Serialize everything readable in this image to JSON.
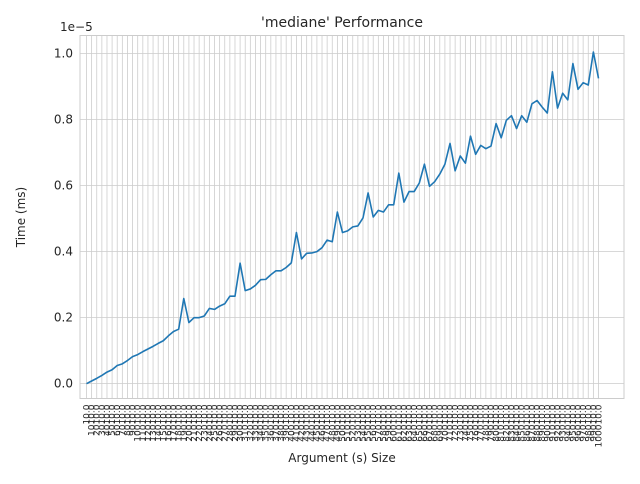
{
  "chart_data": {
    "type": "line",
    "title": "'mediane' Performance",
    "xlabel": "Argument (s) Size",
    "ylabel": "Time (ms)",
    "y_offset_label": "1e−5",
    "y_scale_factor": 1e-05,
    "ylim": [
      -0.045,
      1.055
    ],
    "yticks": [
      0.0,
      0.2,
      0.4,
      0.6,
      0.8,
      1.0
    ],
    "ytick_labels": [
      "0.0",
      "0.2",
      "0.4",
      "0.6",
      "0.8",
      "1.0"
    ],
    "grid": true,
    "x": [
      "10.0",
      "1010.0",
      "2010.0",
      "3010.0",
      "4010.0",
      "5010.0",
      "6010.0",
      "7010.0",
      "8010.0",
      "9010.0",
      "10010.0",
      "11010.0",
      "12010.0",
      "13010.0",
      "14010.0",
      "15010.0",
      "16010.0",
      "17010.0",
      "18010.0",
      "19010.0",
      "20010.0",
      "21010.0",
      "22010.0",
      "23010.0",
      "24010.0",
      "25010.0",
      "26010.0",
      "27010.0",
      "28010.0",
      "29010.0",
      "30010.0",
      "31010.0",
      "32010.0",
      "33010.0",
      "34010.0",
      "35010.0",
      "36010.0",
      "37010.0",
      "38010.0",
      "39010.0",
      "40010.0",
      "41010.0",
      "42010.0",
      "43010.0",
      "44010.0",
      "45010.0",
      "46010.0",
      "47010.0",
      "48010.0",
      "49010.0",
      "50010.0",
      "51010.0",
      "52010.0",
      "53010.0",
      "54010.0",
      "55010.0",
      "56010.0",
      "57010.0",
      "58010.0",
      "59010.0",
      "60010.0",
      "61010.0",
      "62010.0",
      "63010.0",
      "64010.0",
      "65010.0",
      "66010.0",
      "67010.0",
      "68010.0",
      "69010.0",
      "70010.0",
      "71010.0",
      "72010.0",
      "73010.0",
      "74010.0",
      "75010.0",
      "76010.0",
      "77010.0",
      "78010.0",
      "79010.0",
      "80010.0",
      "81010.0",
      "82010.0",
      "83010.0",
      "84010.0",
      "85010.0",
      "86010.0",
      "87010.0",
      "88010.0",
      "89010.0",
      "90010.0",
      "91010.0",
      "92010.0",
      "93010.0",
      "94010.0",
      "95010.0",
      "96010.0",
      "97010.0",
      "98010.0",
      "99010.0",
      "100010.0"
    ],
    "series": [
      {
        "color": "#1f77b4",
        "values": [
          0.0,
          0.008,
          0.016,
          0.025,
          0.035,
          0.042,
          0.055,
          0.06,
          0.07,
          0.082,
          0.088,
          0.097,
          0.105,
          0.113,
          0.122,
          0.13,
          0.145,
          0.158,
          0.165,
          0.258,
          0.185,
          0.2,
          0.2,
          0.205,
          0.228,
          0.225,
          0.235,
          0.242,
          0.265,
          0.265,
          0.365,
          0.282,
          0.287,
          0.298,
          0.315,
          0.316,
          0.33,
          0.342,
          0.342,
          0.352,
          0.366,
          0.458,
          0.378,
          0.395,
          0.396,
          0.4,
          0.412,
          0.435,
          0.43,
          0.52,
          0.458,
          0.463,
          0.475,
          0.478,
          0.502,
          0.578,
          0.505,
          0.525,
          0.52,
          0.542,
          0.542,
          0.638,
          0.55,
          0.582,
          0.582,
          0.608,
          0.665,
          0.598,
          0.612,
          0.635,
          0.665,
          0.728,
          0.645,
          0.69,
          0.668,
          0.75,
          0.695,
          0.722,
          0.712,
          0.72,
          0.788,
          0.745,
          0.798,
          0.812,
          0.773,
          0.812,
          0.792,
          0.848,
          0.858,
          0.838,
          0.82,
          0.945,
          0.835,
          0.88,
          0.86,
          0.97,
          0.892,
          0.912,
          0.905,
          1.005,
          0.925
        ]
      }
    ]
  }
}
